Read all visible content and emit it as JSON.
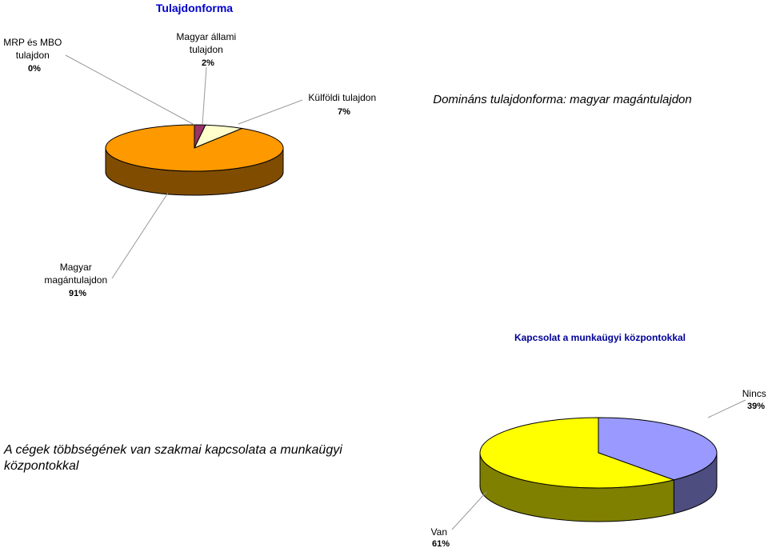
{
  "chart_data": [
    {
      "type": "pie",
      "title": "Tulajdonforma",
      "slices": [
        {
          "label_lines": [
            "Magyar",
            "magántulajdon"
          ],
          "value": 91,
          "pct_text": "91%",
          "color": "#FF9900",
          "side_color": "#804D00"
        },
        {
          "label_lines": [
            "Külföldi tulajdon"
          ],
          "value": 7,
          "pct_text": "7%",
          "color": "#FFFFCC",
          "side_color": "#808066"
        },
        {
          "label_lines": [
            "Magyar állami",
            "tulajdon"
          ],
          "value": 2,
          "pct_text": "2%",
          "color": "#993366",
          "side_color": "#4D1A33"
        },
        {
          "label_lines": [
            "MRP és MBO",
            "tulajdon"
          ],
          "value": 0,
          "pct_text": "0%",
          "color": "#CC99FF",
          "side_color": "#664D80"
        }
      ],
      "annotation": "Domináns tulajdonforma: magyar magántulajdon"
    },
    {
      "type": "pie",
      "title": "Kapcsolat a munkaügyi központokkal",
      "slices": [
        {
          "label_lines": [
            "Nincs"
          ],
          "value": 39,
          "pct_text": "39%",
          "color": "#9999FF",
          "side_color": "#4D4D80"
        },
        {
          "label_lines": [
            "Van"
          ],
          "value": 61,
          "pct_text": "61%",
          "color": "#FFFF00",
          "side_color": "#808000"
        }
      ],
      "annotation_lines": [
        "A cégek többségének van szakmai kapcsolata a munkaügyi",
        "központokkal"
      ]
    }
  ]
}
